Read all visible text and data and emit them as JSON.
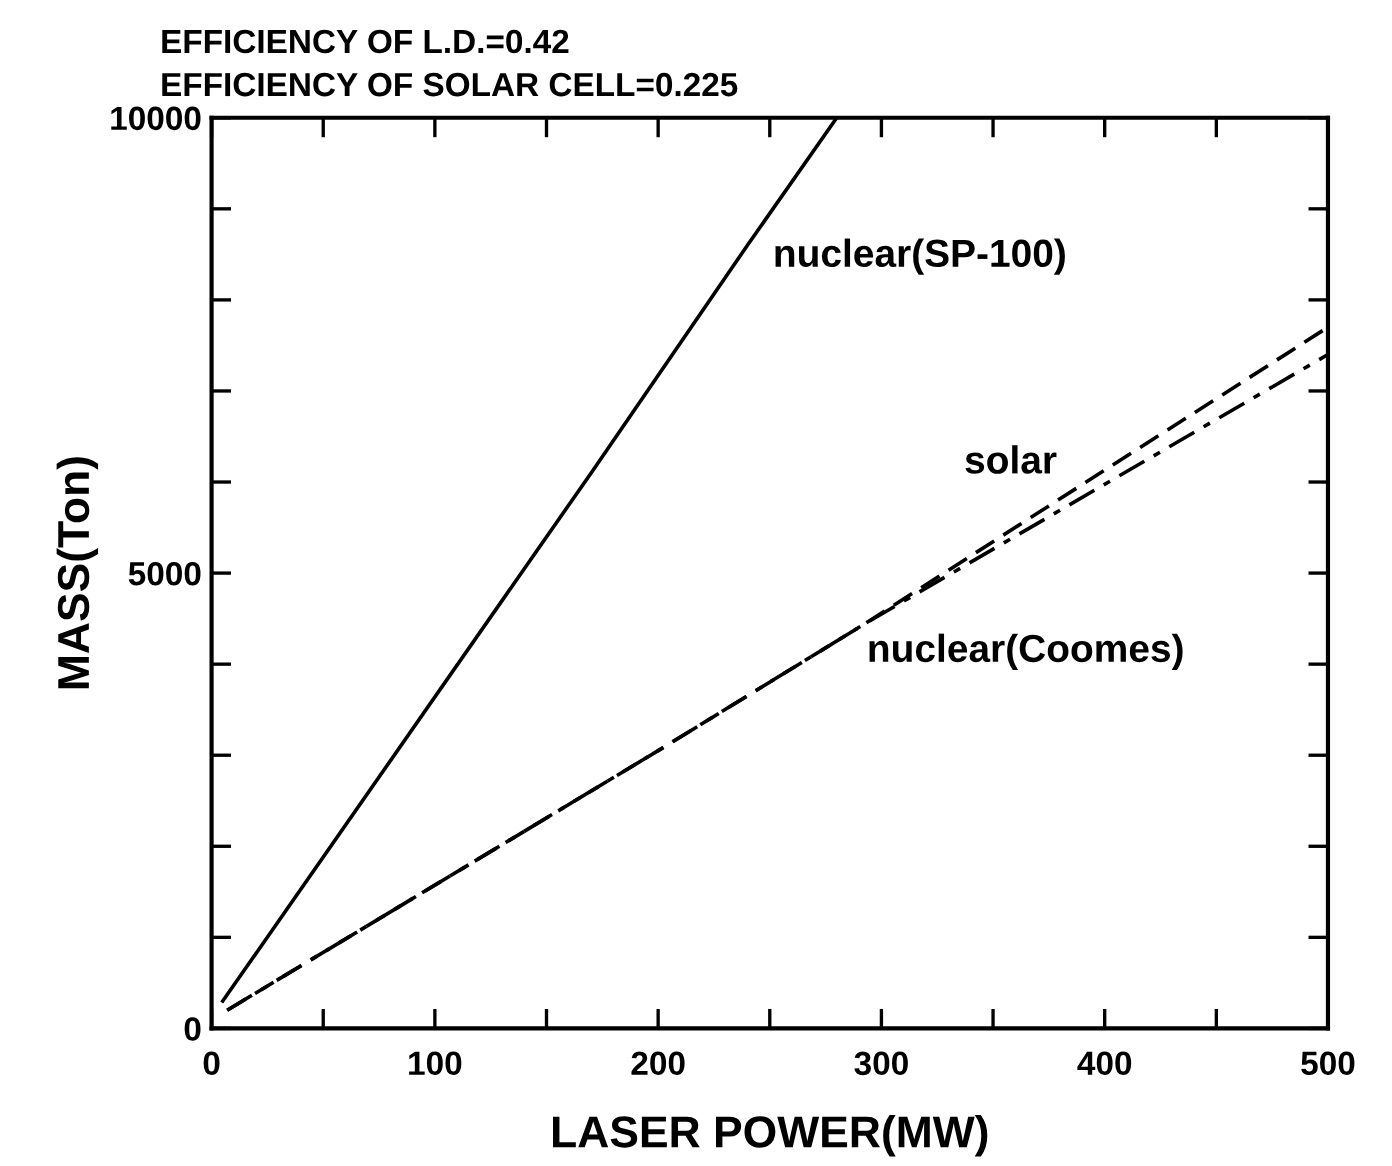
{
  "chart_data": {
    "type": "line",
    "title": "EFFICIENCY OF L.D.=0.42",
    "subtitle": "EFFICIENCY OF SOLAR CELL=0.225",
    "xlabel": "LASER POWER(MW)",
    "ylabel": "MASS(Ton)",
    "series": [
      {
        "name": "nuclear(SP-100)",
        "x": [
          5,
          170,
          240,
          280
        ],
        "values": [
          300,
          6100,
          8600,
          10000
        ],
        "color": "#000000",
        "line_style": "solid"
      },
      {
        "name": "solar",
        "x": [
          7,
          200,
          293,
          500
        ],
        "values": [
          200,
          3050,
          4450,
          7700
        ],
        "color": "#000000",
        "line_style": "dashed"
      },
      {
        "name": "nuclear(Coomes)",
        "x": [
          7,
          200,
          293,
          500
        ],
        "values": [
          200,
          3050,
          4450,
          7400
        ],
        "color": "#000000",
        "line_style": "dashdot"
      }
    ],
    "xlim": [
      0,
      500
    ],
    "ylim": [
      0,
      10000
    ],
    "xticks": [
      0,
      {
        "value": 50,
        "label": null
      },
      100,
      {
        "value": 150,
        "label": null
      },
      200,
      {
        "value": 250,
        "label": null
      },
      300,
      {
        "value": 350,
        "label": null
      },
      400,
      {
        "value": 450,
        "label": null
      },
      500
    ],
    "yticks": [
      0,
      {
        "value": 1000,
        "label": null
      },
      {
        "value": 2000,
        "label": null
      },
      {
        "value": 3000,
        "label": null
      },
      {
        "value": 4000,
        "label": null
      },
      5000,
      {
        "value": 6000,
        "label": null
      },
      {
        "value": 7000,
        "label": null
      },
      {
        "value": 8000,
        "label": null
      },
      {
        "value": 9000,
        "label": null
      },
      10000
    ],
    "grid": false,
    "legend": false,
    "marker": "none"
  }
}
